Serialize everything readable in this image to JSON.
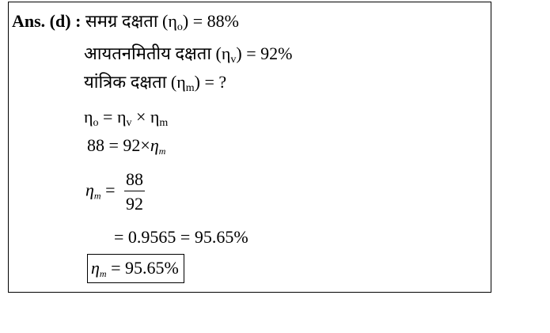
{
  "answer_label": "Ans. (d) :",
  "line1": {
    "text": "समग्र दक्षता (η",
    "sub": "o",
    "rest": ") = 88%"
  },
  "line2": {
    "text": "आयतनमितीय दक्षता (η",
    "sub": "v",
    "rest": ") = 92%"
  },
  "line3": {
    "text": "यांत्रिक दक्षता (η",
    "sub": "m",
    "rest": ") = ?"
  },
  "line4": {
    "eta": "η",
    "sub_o": "o",
    "eq": " = ",
    "sub_v": "v",
    "times": " × ",
    "sub_m": "m"
  },
  "line5": {
    "lhs": "88 = 92×",
    "eta": "η",
    "sub": "m"
  },
  "line6": {
    "eta": "η",
    "sub": "m",
    "eq": " =",
    "num": "88",
    "den": "92"
  },
  "line7": {
    "text": "= 0.9565 = 95.65%"
  },
  "line8": {
    "eta": "η",
    "sub": "m",
    "rhs": " = 95.65%"
  }
}
